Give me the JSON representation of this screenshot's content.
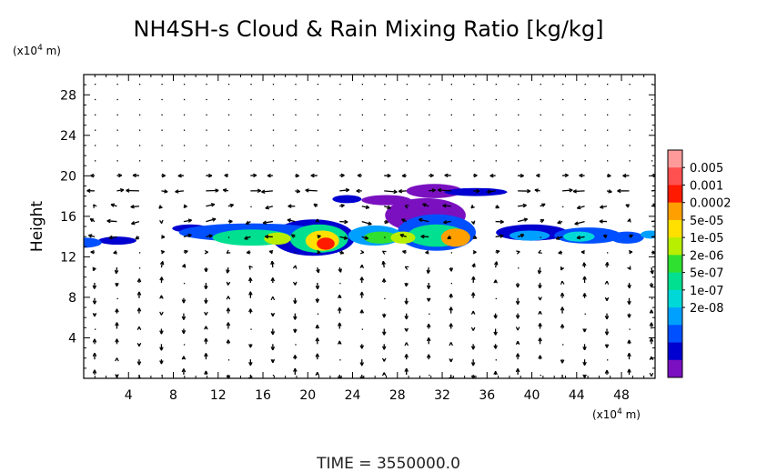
{
  "chart_data": {
    "type": "heatmap",
    "title": "NH4SH-s Cloud & Rain Mixing Ratio [kg/kg]",
    "ylabel": "Height",
    "xlabel": "",
    "x_unit": "(x10^4 m)",
    "y_unit": "(x10^4 m)",
    "unit_base": "(x10",
    "unit_exp": "4",
    "unit_tail": " m)",
    "xlim": [
      0,
      51
    ],
    "ylim": [
      0,
      30
    ],
    "x_ticks": [
      4,
      8,
      12,
      16,
      20,
      24,
      28,
      32,
      36,
      40,
      44,
      48
    ],
    "y_ticks": [
      4,
      8,
      12,
      16,
      20,
      24,
      28
    ],
    "time_label": "TIME  =  3550000.0",
    "overlay": "wind vectors",
    "colorbar": {
      "levels": [
        "0.005",
        "0.001",
        "0.0002",
        "5e-05",
        "1e-05",
        "2e-06",
        "5e-07",
        "1e-07",
        "2e-08"
      ],
      "colors": [
        "#ff9a9a",
        "#ff5050",
        "#ff1a00",
        "#ffa000",
        "#ffe000",
        "#b8ee00",
        "#30e030",
        "#00e090",
        "#00d8d8",
        "#00a0ff",
        "#0050ff",
        "#0000d0",
        "#7a10c0"
      ]
    },
    "cloud_regions": [
      {
        "x": 0.0,
        "y": 13.4,
        "rx": 1.6,
        "ry": 0.5,
        "level": 10
      },
      {
        "x": 3.0,
        "y": 13.6,
        "rx": 1.7,
        "ry": 0.4,
        "level": 11
      },
      {
        "x": 9.5,
        "y": 14.8,
        "rx": 1.6,
        "ry": 0.4,
        "level": 11
      },
      {
        "x": 15.0,
        "y": 14.4,
        "rx": 6.5,
        "ry": 0.9,
        "level": 10
      },
      {
        "x": 15.0,
        "y": 13.9,
        "rx": 3.5,
        "ry": 0.8,
        "level": 7
      },
      {
        "x": 17.3,
        "y": 13.8,
        "rx": 1.2,
        "ry": 0.6,
        "level": 5
      },
      {
        "x": 20.5,
        "y": 13.9,
        "rx": 3.7,
        "ry": 1.8,
        "level": 11
      },
      {
        "x": 21.0,
        "y": 13.8,
        "rx": 2.6,
        "ry": 1.4,
        "level": 7
      },
      {
        "x": 21.3,
        "y": 13.6,
        "rx": 1.5,
        "ry": 1.0,
        "level": 4
      },
      {
        "x": 21.6,
        "y": 13.3,
        "rx": 0.8,
        "ry": 0.6,
        "level": 2
      },
      {
        "x": 26.0,
        "y": 14.1,
        "rx": 2.4,
        "ry": 1.0,
        "level": 9
      },
      {
        "x": 26.5,
        "y": 13.9,
        "rx": 1.5,
        "ry": 0.6,
        "level": 6
      },
      {
        "x": 30.5,
        "y": 16.1,
        "rx": 3.6,
        "ry": 1.7,
        "level": 12
      },
      {
        "x": 31.5,
        "y": 14.4,
        "rx": 3.5,
        "ry": 1.8,
        "level": 10
      },
      {
        "x": 31.5,
        "y": 14.1,
        "rx": 2.6,
        "ry": 1.1,
        "level": 7
      },
      {
        "x": 33.2,
        "y": 13.9,
        "rx": 1.3,
        "ry": 0.9,
        "level": 3
      },
      {
        "x": 28.5,
        "y": 13.9,
        "rx": 1.1,
        "ry": 0.6,
        "level": 5
      },
      {
        "x": 31.3,
        "y": 18.5,
        "rx": 2.5,
        "ry": 0.7,
        "level": 12
      },
      {
        "x": 35.0,
        "y": 18.4,
        "rx": 2.8,
        "ry": 0.4,
        "level": 11
      },
      {
        "x": 27.0,
        "y": 17.6,
        "rx": 2.2,
        "ry": 0.5,
        "level": 12
      },
      {
        "x": 23.5,
        "y": 17.7,
        "rx": 1.3,
        "ry": 0.4,
        "level": 11
      },
      {
        "x": 40.0,
        "y": 14.4,
        "rx": 3.2,
        "ry": 0.8,
        "level": 11
      },
      {
        "x": 39.8,
        "y": 14.1,
        "rx": 1.8,
        "ry": 0.5,
        "level": 9
      },
      {
        "x": 45.0,
        "y": 14.1,
        "rx": 3.0,
        "ry": 0.8,
        "level": 10
      },
      {
        "x": 44.2,
        "y": 14.0,
        "rx": 1.4,
        "ry": 0.5,
        "level": 8
      },
      {
        "x": 48.5,
        "y": 13.9,
        "rx": 1.5,
        "ry": 0.6,
        "level": 10
      },
      {
        "x": 50.6,
        "y": 14.2,
        "rx": 0.9,
        "ry": 0.4,
        "level": 9
      }
    ]
  }
}
